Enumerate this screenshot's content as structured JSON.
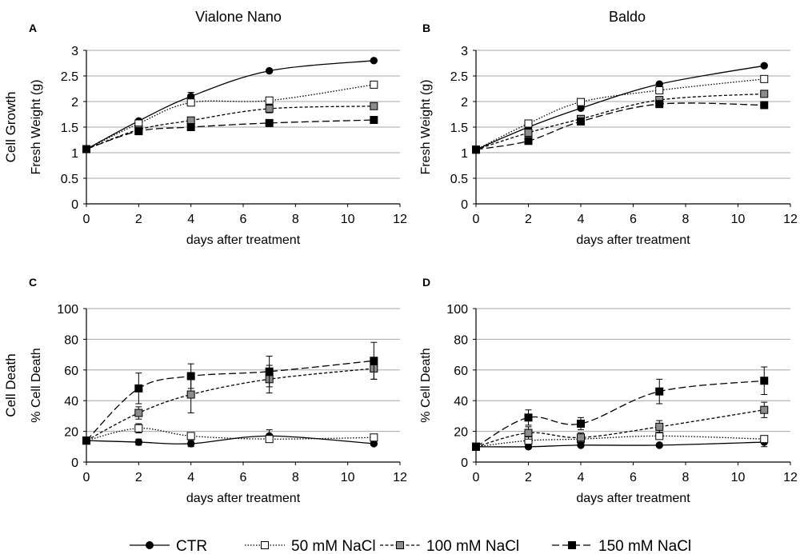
{
  "figure": {
    "column_titles": [
      "Vialone Nano",
      "Baldo"
    ],
    "row_labels": [
      "Cell Growth",
      "Cell Death"
    ]
  },
  "legend": {
    "entries": [
      {
        "name": "CTR",
        "marker": "circle",
        "fill": "#000000",
        "dash": "solid"
      },
      {
        "name": "50 mM NaCl",
        "marker": "square",
        "fill": "#ffffff",
        "dash": "dotted"
      },
      {
        "name": "100 mM NaCl",
        "marker": "square",
        "fill": "#8c8c8c",
        "dash": "short-dash"
      },
      {
        "name": "150 mM NaCl",
        "marker": "square",
        "fill": "#000000",
        "dash": "long-dash"
      }
    ]
  },
  "chart_data": [
    {
      "panel": "A",
      "type": "line",
      "title": "Vialone Nano",
      "xlabel": "days after treatment",
      "ylabel": "Fresh Weight (g)",
      "xlim": [
        0,
        12
      ],
      "ylim": [
        0,
        3
      ],
      "xticks": [
        0,
        2,
        4,
        6,
        8,
        10,
        12
      ],
      "yticks": [
        0,
        0.5,
        1,
        1.5,
        2,
        2.5,
        3
      ],
      "ytick_labels": [
        "0",
        "0.5",
        "1",
        "1.5",
        "2",
        "2.5",
        "3"
      ],
      "x": [
        0,
        2,
        4,
        7,
        11
      ],
      "series": [
        {
          "name": "CTR",
          "values": [
            1.07,
            1.62,
            2.1,
            2.6,
            2.8
          ],
          "errors": [
            0,
            0,
            0.08,
            0,
            0
          ]
        },
        {
          "name": "50 mM NaCl",
          "values": [
            1.07,
            1.57,
            1.98,
            2.02,
            2.33
          ],
          "errors": [
            0,
            0,
            0,
            0,
            0
          ]
        },
        {
          "name": "100 mM NaCl",
          "values": [
            1.07,
            1.45,
            1.63,
            1.86,
            1.91
          ],
          "errors": [
            0,
            0,
            0,
            0.08,
            0
          ]
        },
        {
          "name": "150 mM NaCl",
          "values": [
            1.07,
            1.42,
            1.5,
            1.58,
            1.64
          ],
          "errors": [
            0,
            0,
            0,
            0,
            0
          ]
        }
      ]
    },
    {
      "panel": "B",
      "type": "line",
      "title": "Baldo",
      "xlabel": "days after treatment",
      "ylabel": "Fresh Weight (g)",
      "xlim": [
        0,
        12
      ],
      "ylim": [
        0,
        3
      ],
      "xticks": [
        0,
        2,
        4,
        6,
        8,
        10,
        12
      ],
      "yticks": [
        0,
        0.5,
        1,
        1.5,
        2,
        2.5,
        3
      ],
      "ytick_labels": [
        "0",
        "0.5",
        "1",
        "1.5",
        "2",
        "2.5",
        "3"
      ],
      "x": [
        0,
        2,
        4,
        7,
        11
      ],
      "series": [
        {
          "name": "CTR",
          "values": [
            1.06,
            1.5,
            1.87,
            2.34,
            2.7
          ],
          "errors": [
            0,
            0,
            0,
            0,
            0
          ]
        },
        {
          "name": "50 mM NaCl",
          "values": [
            1.06,
            1.57,
            1.99,
            2.22,
            2.44
          ],
          "errors": [
            0,
            0,
            0,
            0,
            0
          ]
        },
        {
          "name": "100 mM NaCl",
          "values": [
            1.06,
            1.39,
            1.66,
            2.03,
            2.15
          ],
          "errors": [
            0,
            0,
            0,
            0,
            0
          ]
        },
        {
          "name": "150 mM NaCl",
          "values": [
            1.06,
            1.23,
            1.61,
            1.95,
            1.93
          ],
          "errors": [
            0,
            0,
            0,
            0,
            0
          ]
        }
      ]
    },
    {
      "panel": "C",
      "type": "line",
      "title": "",
      "xlabel": "days after treatment",
      "ylabel": "% Cell Death",
      "xlim": [
        0,
        12
      ],
      "ylim": [
        0,
        100
      ],
      "xticks": [
        0,
        2,
        4,
        6,
        8,
        10,
        12
      ],
      "yticks": [
        0,
        20,
        40,
        60,
        80,
        100
      ],
      "ytick_labels": [
        "0",
        "20",
        "40",
        "60",
        "80",
        "100"
      ],
      "x": [
        0,
        2,
        4,
        7,
        11
      ],
      "series": [
        {
          "name": "CTR",
          "values": [
            14,
            13,
            12,
            17,
            12
          ],
          "errors": [
            0,
            2,
            2,
            4,
            1
          ]
        },
        {
          "name": "50 mM NaCl",
          "values": [
            14,
            22,
            17,
            15,
            16
          ],
          "errors": [
            0,
            3,
            2,
            2,
            1
          ]
        },
        {
          "name": "100 mM NaCl",
          "values": [
            14,
            32,
            44,
            54,
            61
          ],
          "errors": [
            0,
            4,
            12,
            9,
            7
          ]
        },
        {
          "name": "150 mM NaCl",
          "values": [
            14,
            48,
            56,
            59,
            66
          ],
          "errors": [
            0,
            10,
            8,
            10,
            12
          ]
        }
      ]
    },
    {
      "panel": "D",
      "type": "line",
      "title": "",
      "xlabel": "days after treatment",
      "ylabel": "% Cell Death",
      "xlim": [
        0,
        12
      ],
      "ylim": [
        0,
        100
      ],
      "xticks": [
        0,
        2,
        4,
        6,
        8,
        10,
        12
      ],
      "yticks": [
        0,
        20,
        40,
        60,
        80,
        100
      ],
      "ytick_labels": [
        "0",
        "20",
        "40",
        "60",
        "80",
        "100"
      ],
      "x": [
        0,
        2,
        4,
        7,
        11
      ],
      "series": [
        {
          "name": "CTR",
          "values": [
            10,
            10,
            11,
            11,
            13
          ],
          "errors": [
            0,
            1,
            1,
            1,
            3
          ]
        },
        {
          "name": "50 mM NaCl",
          "values": [
            10,
            14,
            15,
            17,
            15
          ],
          "errors": [
            0,
            2,
            2,
            2,
            2
          ]
        },
        {
          "name": "100 mM NaCl",
          "values": [
            10,
            19,
            16,
            23,
            34
          ],
          "errors": [
            0,
            4,
            3,
            4,
            5
          ]
        },
        {
          "name": "150 mM NaCl",
          "values": [
            10,
            29,
            25,
            46,
            53
          ],
          "errors": [
            0,
            5,
            4,
            8,
            9
          ]
        }
      ]
    }
  ]
}
